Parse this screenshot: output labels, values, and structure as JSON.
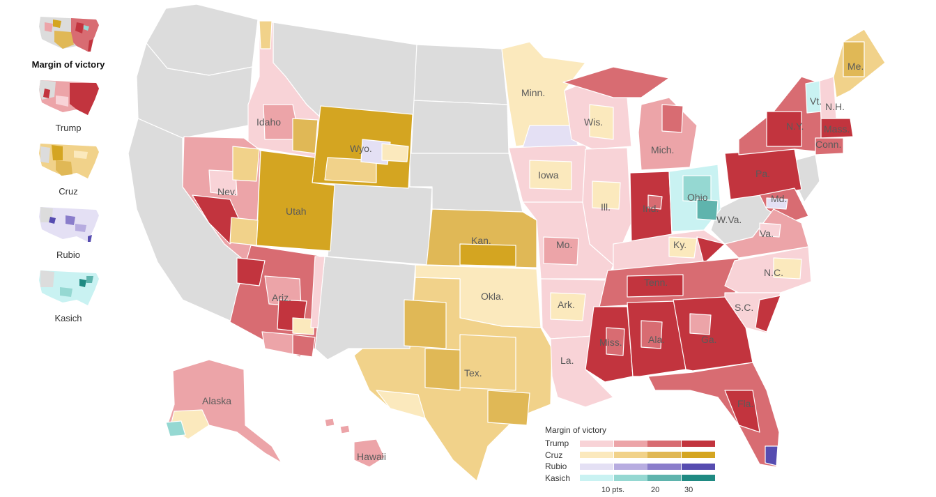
{
  "sidebar": {
    "items": [
      {
        "label": "Margin of victory",
        "active": true
      },
      {
        "label": "Trump",
        "active": false
      },
      {
        "label": "Cruz",
        "active": false
      },
      {
        "label": "Rubio",
        "active": false
      },
      {
        "label": "Kasich",
        "active": false
      }
    ]
  },
  "map": {
    "state_labels": {
      "minn": "Minn.",
      "wis": "Wis.",
      "mich": "Mich.",
      "ny": "N.Y.",
      "mass": "Mass.",
      "conn": "Conn.",
      "vt": "Vt.",
      "nh": "N.H.",
      "me": "Me.",
      "idaho": "Idaho",
      "wyo": "Wyo.",
      "nev": "Nev.",
      "utah": "Utah",
      "iowa": "Iowa",
      "ill": "Ill.",
      "ind": "Ind.",
      "ohio": "Ohio",
      "pa": "Pa.",
      "md": "Md.",
      "wva": "W.Va.",
      "va": "Va.",
      "kan": "Kan.",
      "mo": "Mo.",
      "ky": "Ky.",
      "tenn": "Tenn.",
      "nc": "N.C.",
      "sc": "S.C.",
      "okla": "Okla.",
      "ark": "Ark.",
      "ariz": "Ariz.",
      "miss": "Miss.",
      "ala": "Ala.",
      "ga": "Ga.",
      "la": "La.",
      "tex": "Tex.",
      "fla": "Fla.",
      "alaska": "Alaska",
      "hawaii": "Hawaii"
    }
  },
  "legend": {
    "title": "Margin of victory",
    "rows": [
      {
        "name": "Trump",
        "colors": [
          "#f8d3d7",
          "#eca4a8",
          "#d86c72",
          "#c2343e"
        ]
      },
      {
        "name": "Cruz",
        "colors": [
          "#fbe9bd",
          "#f1d28a",
          "#e0b856",
          "#d4a521"
        ]
      },
      {
        "name": "Rubio",
        "colors": [
          "#e4e0f4",
          "#b7ace0",
          "#8a7dcb",
          "#564cb0"
        ]
      },
      {
        "name": "Kasich",
        "colors": [
          "#c9f2f2",
          "#95d8d2",
          "#5fb4ad",
          "#1f8a82"
        ]
      }
    ],
    "ticks": [
      "10 pts.",
      "20",
      "30"
    ]
  },
  "colors": {
    "no_vote": "#dcdcdc",
    "border": "#ffffff"
  }
}
